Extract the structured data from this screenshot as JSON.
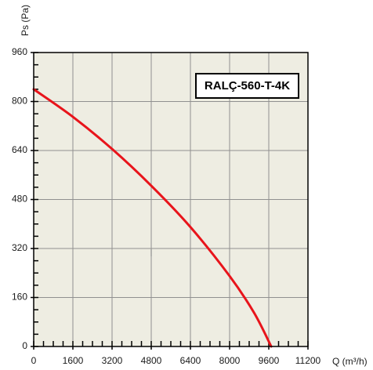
{
  "chart_data": {
    "type": "line",
    "title": "",
    "model_label": "RALÇ-560-T-4K",
    "xlabel": "Q (m³/h)",
    "ylabel": "Ps (Pa)",
    "xlim": [
      0,
      11200
    ],
    "ylim": [
      0,
      960
    ],
    "x_ticks": [
      "0",
      "1600",
      "3200",
      "4800",
      "6400",
      "8000",
      "9600",
      "11200"
    ],
    "y_ticks": [
      "0",
      "160",
      "320",
      "480",
      "640",
      "800",
      "960"
    ],
    "grid": true,
    "series": [
      {
        "color": "#e8141b",
        "x": [
          0,
          1600,
          3200,
          4800,
          6400,
          8000,
          9000,
          9700
        ],
        "y": [
          840,
          750,
          645,
          525,
          390,
          230,
          110,
          0
        ]
      }
    ],
    "colors": {
      "plot_background": "#eeede2",
      "grid": "#909090",
      "axis": "#000000"
    }
  }
}
